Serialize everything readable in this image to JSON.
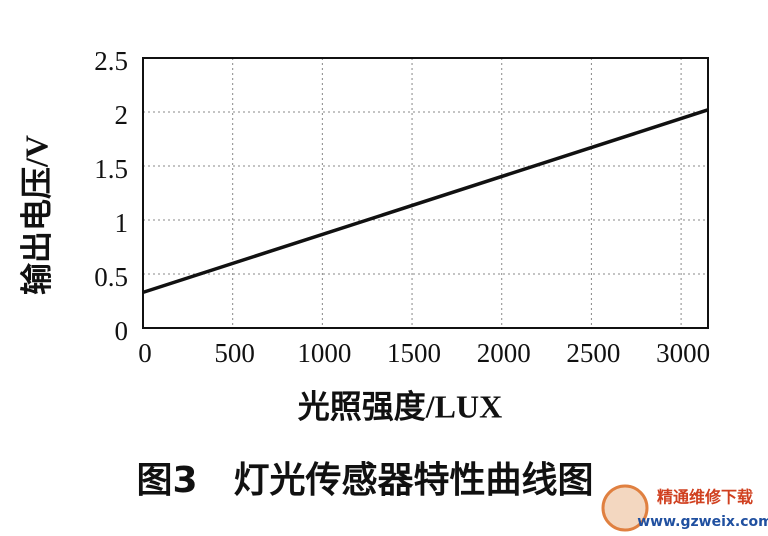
{
  "chart_data": {
    "type": "line",
    "title": "图3　灯光传感器特性曲线图",
    "x_label": "光照强度/LUX",
    "y_label": "输出电压/V",
    "x": [
      0,
      3150
    ],
    "series": [
      {
        "name": "输出电压",
        "color": "#111111",
        "values": [
          0.33,
          2.02
        ]
      }
    ],
    "xlim": [
      0,
      3150
    ],
    "xticks": [
      0,
      500,
      1000,
      1500,
      2000,
      2500,
      3000
    ],
    "ylim": [
      0,
      2.5
    ],
    "yticks": [
      0,
      0.5,
      1,
      1.5,
      2,
      2.5
    ],
    "grid": true,
    "watermark": [
      "精通维修下载",
      "www.gzweix.com"
    ]
  }
}
